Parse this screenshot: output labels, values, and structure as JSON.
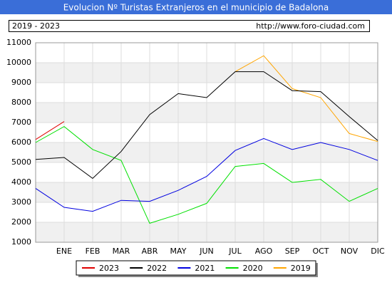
{
  "chart_data": {
    "type": "line",
    "title": "Evolucion Nº Turistas Extranjeros en el municipio de Badalona",
    "subtitle": "2019 - 2023",
    "source": "http://www.foro-ciudad.com",
    "categories": [
      null,
      "ENE",
      "FEB",
      "MAR",
      "ABR",
      "MAY",
      "JUN",
      "JUL",
      "AGO",
      "SEP",
      "OCT",
      "NOV",
      "DIC"
    ],
    "series": [
      {
        "name": "2023",
        "color": "#e00000",
        "values": [
          6150,
          7050,
          null,
          null,
          null,
          null,
          null,
          null,
          null,
          null,
          null,
          null,
          null
        ]
      },
      {
        "name": "2022",
        "color": "#000000",
        "values": [
          5150,
          5250,
          4200,
          5550,
          7400,
          8450,
          8250,
          9550,
          9550,
          8600,
          8550,
          7300,
          6100
        ]
      },
      {
        "name": "2021",
        "color": "#0000e0",
        "values": [
          3700,
          2750,
          2550,
          3100,
          3050,
          3600,
          4300,
          5600,
          6200,
          5650,
          6000,
          5650,
          5100
        ]
      },
      {
        "name": "2020",
        "color": "#00e000",
        "values": [
          6000,
          6800,
          5650,
          5100,
          1950,
          2400,
          2950,
          4800,
          4950,
          4000,
          4150,
          3050,
          3700
        ]
      },
      {
        "name": "2019",
        "color": "#ffa500",
        "values": [
          null,
          null,
          null,
          null,
          null,
          null,
          null,
          9550,
          10350,
          8700,
          8250,
          6450,
          6050
        ]
      }
    ],
    "ylim": [
      1000,
      11000
    ],
    "yticks": [
      1000,
      2000,
      3000,
      4000,
      5000,
      6000,
      7000,
      8000,
      9000,
      10000,
      11000
    ],
    "grid": true
  }
}
